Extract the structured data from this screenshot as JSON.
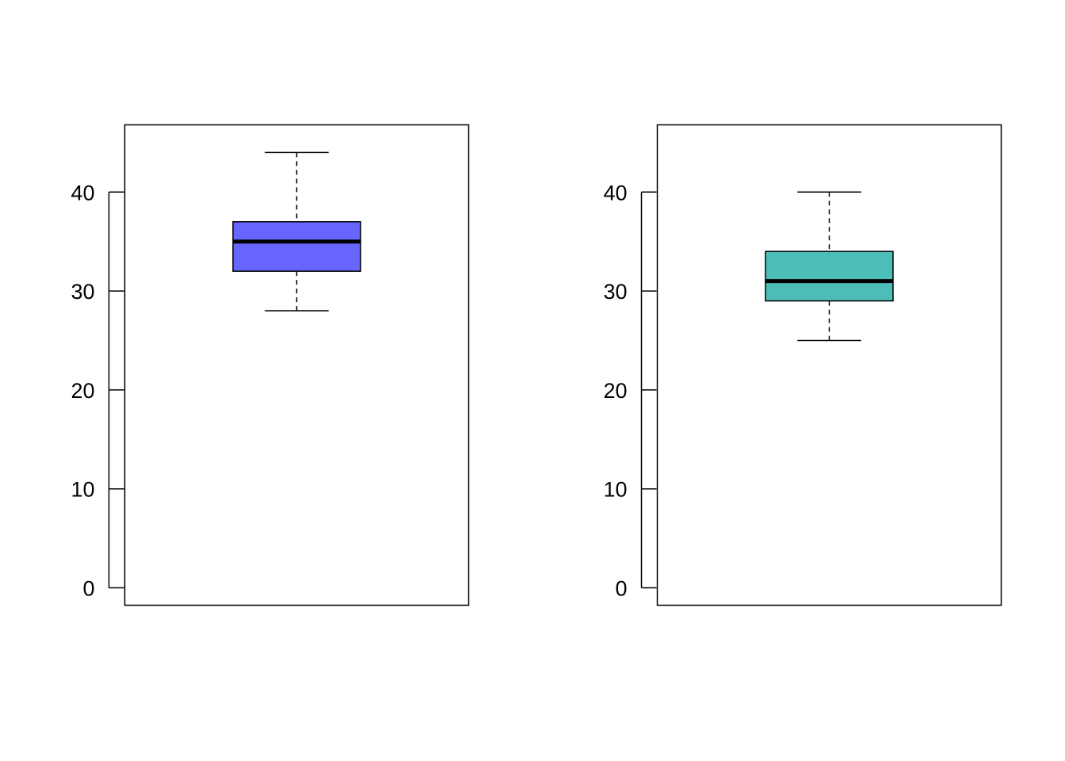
{
  "chart_data": [
    {
      "type": "box",
      "ylim": [
        0,
        46
      ],
      "yticks": [
        0,
        10,
        20,
        30,
        40
      ],
      "ytick_labels": [
        "0",
        "10",
        "20",
        "30",
        "40"
      ],
      "grid": false,
      "box": {
        "min": 28,
        "q1": 32,
        "median": 35,
        "q3": 37,
        "max": 44
      },
      "fill_color": "#6666ff"
    },
    {
      "type": "box",
      "ylim": [
        0,
        46
      ],
      "yticks": [
        0,
        10,
        20,
        30,
        40
      ],
      "ytick_labels": [
        "0",
        "10",
        "20",
        "30",
        "40"
      ],
      "grid": false,
      "box": {
        "min": 25,
        "q1": 29,
        "median": 31,
        "q3": 34,
        "max": 40
      },
      "fill_color": "#4dbdb8"
    }
  ]
}
